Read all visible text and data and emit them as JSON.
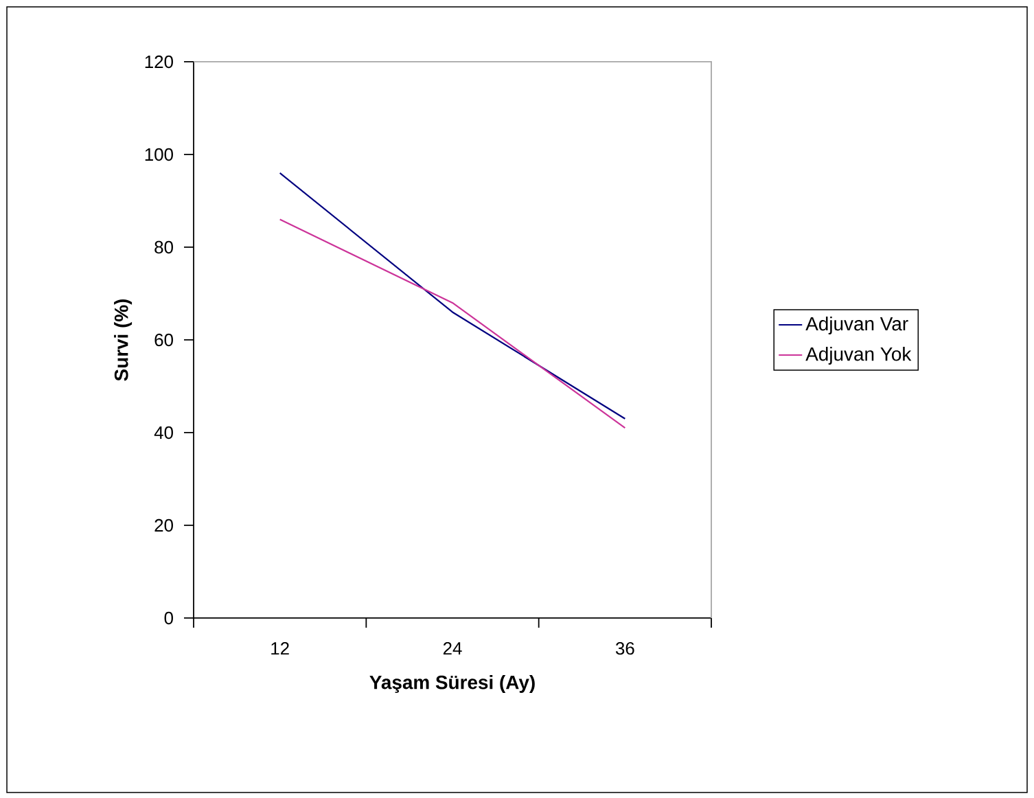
{
  "chart_data": {
    "type": "line",
    "xlabel": "Yaşam Süresi (Ay)",
    "ylabel": "Survi (%)",
    "categories": [
      "12",
      "24",
      "36"
    ],
    "series": [
      {
        "name": "Adjuvan Var",
        "color": "#000080",
        "values": [
          96,
          66,
          43
        ]
      },
      {
        "name": "Adjuvan Yok",
        "color": "#cc3399",
        "values": [
          86,
          68,
          41
        ]
      }
    ],
    "ylim": [
      0,
      120
    ],
    "yticks": [
      0,
      20,
      40,
      60,
      80,
      100,
      120
    ],
    "legend": "right",
    "marker": "none",
    "line_style": "solid"
  }
}
